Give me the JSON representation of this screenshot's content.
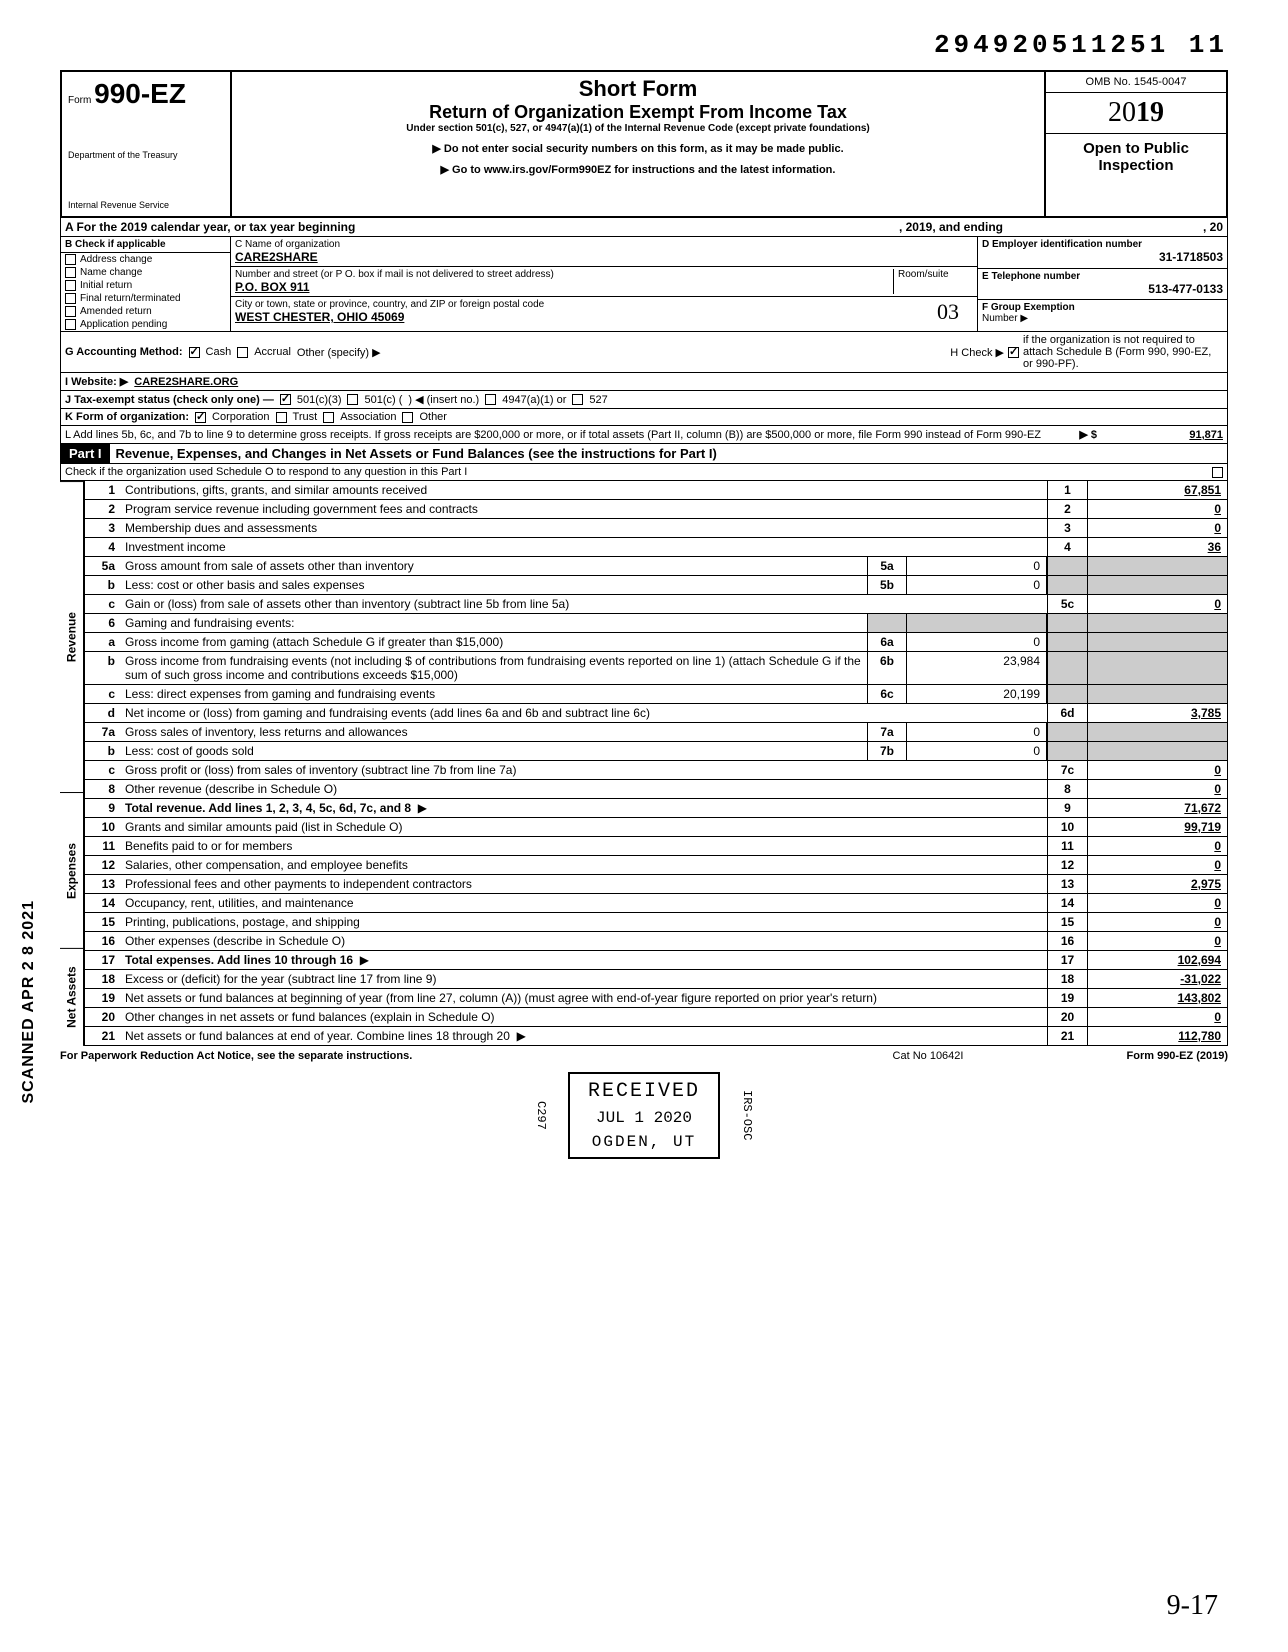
{
  "doc_number": "294920511251 11",
  "form": {
    "prefix": "Form",
    "number": "990-EZ",
    "title": "Short Form",
    "subtitle": "Return of Organization Exempt From Income Tax",
    "caption": "Under section 501(c), 527, or 4947(a)(1) of the Internal Revenue Code (except private foundations)",
    "arrow1": "▶ Do not enter social security numbers on this form, as it may be made public.",
    "arrow2": "▶ Go to www.irs.gov/Form990EZ for instructions and the latest information.",
    "dept1": "Department of the Treasury",
    "dept2": "Internal Revenue Service",
    "omb": "OMB No. 1545-0047",
    "year_prefix": "20",
    "year_bold": "19",
    "open_public1": "Open to Public",
    "open_public2": "Inspection"
  },
  "row_a": {
    "text": "A  For the 2019 calendar year, or tax year beginning",
    "mid": ", 2019, and ending",
    "end": ", 20"
  },
  "section_b": {
    "header": "B  Check if applicable",
    "items": [
      "Address change",
      "Name change",
      "Initial return",
      "Final return/terminated",
      "Amended return",
      "Application pending"
    ]
  },
  "section_c": {
    "name_label": "C  Name of organization",
    "name": "CARE2SHARE",
    "addr_label": "Number and street (or P O. box if mail is not delivered to street address)",
    "room_label": "Room/suite",
    "addr": "P.O. BOX 911",
    "city_label": "City or town, state or province, country, and ZIP or foreign postal code",
    "city": "WEST CHESTER, OHIO 45069",
    "hand": "03"
  },
  "section_de": {
    "d_label": "D Employer identification number",
    "d_val": "31-1718503",
    "e_label": "E Telephone number",
    "e_val": "513-477-0133",
    "f_label": "F  Group Exemption",
    "f_label2": "Number ▶"
  },
  "row_g": {
    "label": "G  Accounting Method:",
    "cash": "Cash",
    "accrual": "Accrual",
    "other": "Other (specify) ▶"
  },
  "row_h": {
    "text": "H  Check ▶",
    "rest": "if the organization is not required to attach Schedule B (Form 990, 990-EZ, or 990-PF)."
  },
  "row_i": {
    "label": "I   Website: ▶",
    "val": "CARE2SHARE.ORG"
  },
  "row_j": {
    "label": "J  Tax-exempt status (check only one) —",
    "a": "501(c)(3)",
    "b": "501(c) (",
    "b2": ") ◀ (insert no.)",
    "c": "4947(a)(1) or",
    "d": "527"
  },
  "row_k": {
    "label": "K  Form of organization:",
    "a": "Corporation",
    "b": "Trust",
    "c": "Association",
    "d": "Other"
  },
  "row_l": {
    "text": "L  Add lines 5b, 6c, and 7b to line 9 to determine gross receipts. If gross receipts are $200,000 or more, or if total assets (Part II, column (B)) are $500,000 or more, file Form 990 instead of Form 990-EZ",
    "arrow": "▶  $",
    "val": "91,871"
  },
  "part1": {
    "label": "Part I",
    "title": "Revenue, Expenses, and Changes in Net Assets or Fund Balances (see the instructions for Part I)",
    "check_line": "Check if the organization used Schedule O to respond to any question in this Part I"
  },
  "side_labels": {
    "rev": "Revenue",
    "exp": "Expenses",
    "net": "Net Assets"
  },
  "lines": [
    {
      "n": "1",
      "d": "Contributions, gifts, grants, and similar amounts received",
      "mn": "1",
      "mv": "67,851"
    },
    {
      "n": "2",
      "d": "Program service revenue including government fees and contracts",
      "mn": "2",
      "mv": "0"
    },
    {
      "n": "3",
      "d": "Membership dues and assessments",
      "mn": "3",
      "mv": "0"
    },
    {
      "n": "4",
      "d": "Investment income",
      "mn": "4",
      "mv": "36"
    },
    {
      "n": "5a",
      "d": "Gross amount from sale of assets other than inventory",
      "sn": "5a",
      "sv": "0",
      "shade": true
    },
    {
      "n": "b",
      "d": "Less: cost or other basis and sales expenses",
      "sn": "5b",
      "sv": "0",
      "shade": true
    },
    {
      "n": "c",
      "d": "Gain or (loss) from sale of assets other than inventory (subtract line 5b from line 5a)",
      "mn": "5c",
      "mv": "0"
    },
    {
      "n": "6",
      "d": "Gaming and fundraising events:",
      "shade": true,
      "noval": true
    },
    {
      "n": "a",
      "d": "Gross income from gaming (attach Schedule G if greater than $15,000)",
      "sn": "6a",
      "sv": "0",
      "shade": true
    },
    {
      "n": "b",
      "d": "Gross income from fundraising events (not including  $                       of contributions from fundraising events reported on line 1) (attach Schedule G if the sum of such gross income and contributions exceeds $15,000)",
      "sn": "6b",
      "sv": "23,984",
      "shade": true
    },
    {
      "n": "c",
      "d": "Less: direct expenses from gaming and fundraising events",
      "sn": "6c",
      "sv": "20,199",
      "shade": true
    },
    {
      "n": "d",
      "d": "Net income or (loss) from gaming and fundraising events (add lines 6a and 6b and subtract line 6c)",
      "mn": "6d",
      "mv": "3,785"
    },
    {
      "n": "7a",
      "d": "Gross sales of inventory, less returns and allowances",
      "sn": "7a",
      "sv": "0",
      "shade": true
    },
    {
      "n": "b",
      "d": "Less: cost of goods sold",
      "sn": "7b",
      "sv": "0",
      "shade": true
    },
    {
      "n": "c",
      "d": "Gross profit or (loss) from sales of inventory (subtract line 7b from line 7a)",
      "mn": "7c",
      "mv": "0"
    },
    {
      "n": "8",
      "d": "Other revenue (describe in Schedule O)",
      "mn": "8",
      "mv": "0"
    },
    {
      "n": "9",
      "d": "Total revenue. Add lines 1, 2, 3, 4, 5c, 6d, 7c, and 8",
      "mn": "9",
      "mv": "71,672",
      "bold": true,
      "arrow": true
    },
    {
      "n": "10",
      "d": "Grants and similar amounts paid (list in Schedule O)",
      "mn": "10",
      "mv": "99,719"
    },
    {
      "n": "11",
      "d": "Benefits paid to or for members",
      "mn": "11",
      "mv": "0"
    },
    {
      "n": "12",
      "d": "Salaries, other compensation, and employee benefits",
      "mn": "12",
      "mv": "0"
    },
    {
      "n": "13",
      "d": "Professional fees and other payments to independent contractors",
      "mn": "13",
      "mv": "2,975"
    },
    {
      "n": "14",
      "d": "Occupancy, rent, utilities, and maintenance",
      "mn": "14",
      "mv": "0"
    },
    {
      "n": "15",
      "d": "Printing, publications, postage, and shipping",
      "mn": "15",
      "mv": "0"
    },
    {
      "n": "16",
      "d": "Other expenses (describe in Schedule O)",
      "mn": "16",
      "mv": "0"
    },
    {
      "n": "17",
      "d": "Total expenses. Add lines 10 through 16",
      "mn": "17",
      "mv": "102,694",
      "bold": true,
      "arrow": true
    },
    {
      "n": "18",
      "d": "Excess or (deficit) for the year (subtract line 17 from line 9)",
      "mn": "18",
      "mv": "-31,022"
    },
    {
      "n": "19",
      "d": "Net assets or fund balances at beginning of year (from line 27, column (A)) (must agree with end-of-year figure reported on prior year's return)",
      "mn": "19",
      "mv": "143,802"
    },
    {
      "n": "20",
      "d": "Other changes in net assets or fund balances (explain in Schedule O)",
      "mn": "20",
      "mv": "0"
    },
    {
      "n": "21",
      "d": "Net assets or fund balances at end of year. Combine lines 18 through 20",
      "mn": "21",
      "mv": "112,780",
      "arrow": true
    }
  ],
  "footer": {
    "left": "For Paperwork Reduction Act Notice, see the separate instructions.",
    "mid": "Cat  No  10642I",
    "right": "Form 990-EZ (2019)"
  },
  "stamp": {
    "received": "RECEIVED",
    "date": "JUL 1   2020",
    "loc": "OGDEN, UT",
    "side_l": "C297",
    "side_r": "IRS-OSC"
  },
  "scanned": "SCANNED APR 2 8 2021",
  "handwrite": "9-17"
}
